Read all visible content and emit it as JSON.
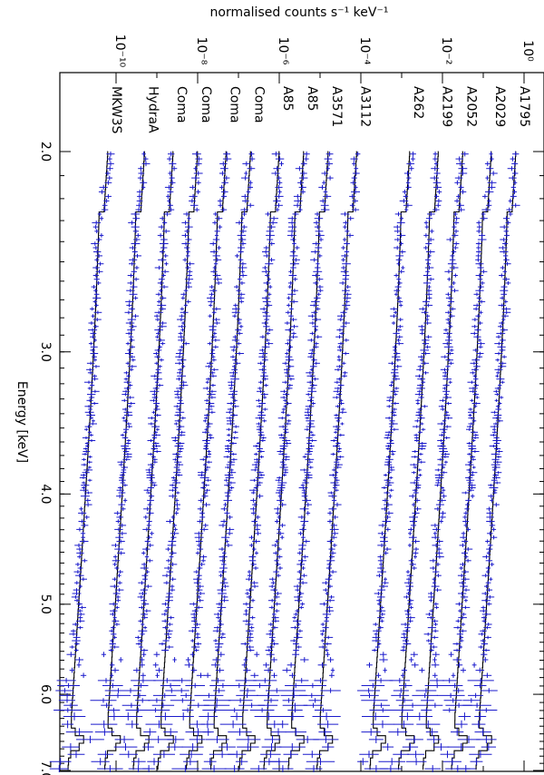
{
  "chart_data": {
    "type": "line",
    "orientation": "rotated 90 degrees clockwise",
    "x_axis": {
      "label": "Energy [keV]",
      "scale": "log",
      "range": [
        1.8,
        7.0
      ],
      "ticks": [
        {
          "value": 2.0,
          "label": "2.0"
        },
        {
          "value": 3.0,
          "label": "3.0"
        },
        {
          "value": 4.0,
          "label": "4.0"
        },
        {
          "value": 5.0,
          "label": "5.0"
        },
        {
          "value": 6.0,
          "label": "6.0"
        },
        {
          "value": 7.0,
          "label": "7.0"
        }
      ]
    },
    "y_axis": {
      "label": "normalised counts s⁻¹ keV⁻¹",
      "scale": "log",
      "range": [
        -12.0,
        0.0
      ],
      "ticks": [
        {
          "value": 0,
          "label": "10⁰"
        },
        {
          "value": -2,
          "label": "10⁻²"
        },
        {
          "value": -4,
          "label": "10⁻⁴"
        },
        {
          "value": -6,
          "label": "10⁻⁶"
        },
        {
          "value": -8,
          "label": "10⁻⁸"
        },
        {
          "value": -10,
          "label": "10⁻¹⁰"
        }
      ]
    },
    "grid": false,
    "colors": {
      "data": "#1a1acc",
      "model": "#000000"
    },
    "series": [
      {
        "name": "A1795",
        "log_norm_at_2keV": -0.2
      },
      {
        "name": "A2029",
        "log_norm_at_2keV": -0.8
      },
      {
        "name": "A2052",
        "log_norm_at_2keV": -1.5
      },
      {
        "name": "A2199",
        "log_norm_at_2keV": -2.1
      },
      {
        "name": "A262",
        "log_norm_at_2keV": -2.8
      },
      {
        "name": "A3112",
        "log_norm_at_2keV": -4.1
      },
      {
        "name": "A3571",
        "log_norm_at_2keV": -4.8
      },
      {
        "name": "A85",
        "log_norm_at_2keV": -5.4
      },
      {
        "name": "A85",
        "log_norm_at_2keV": -6.0
      },
      {
        "name": "Coma",
        "log_norm_at_2keV": -6.7
      },
      {
        "name": "Coma",
        "log_norm_at_2keV": -7.3
      },
      {
        "name": "Coma",
        "log_norm_at_2keV": -8.0
      },
      {
        "name": "Coma",
        "log_norm_at_2keV": -8.6
      },
      {
        "name": "HydraA",
        "log_norm_at_2keV": -9.3
      },
      {
        "name": "MKW3S",
        "log_norm_at_2keV": -10.2
      }
    ],
    "model_shape": {
      "description": "declining power-law continuum with Fe K line near 6.7 keV and edge near 2.3 keV",
      "slope_per_log10_keV": -1.8,
      "edge_energy_keV": 2.25,
      "edge_depth_log": -0.12,
      "line_energy_keV": 6.6,
      "line_height_log": 0.35
    }
  }
}
